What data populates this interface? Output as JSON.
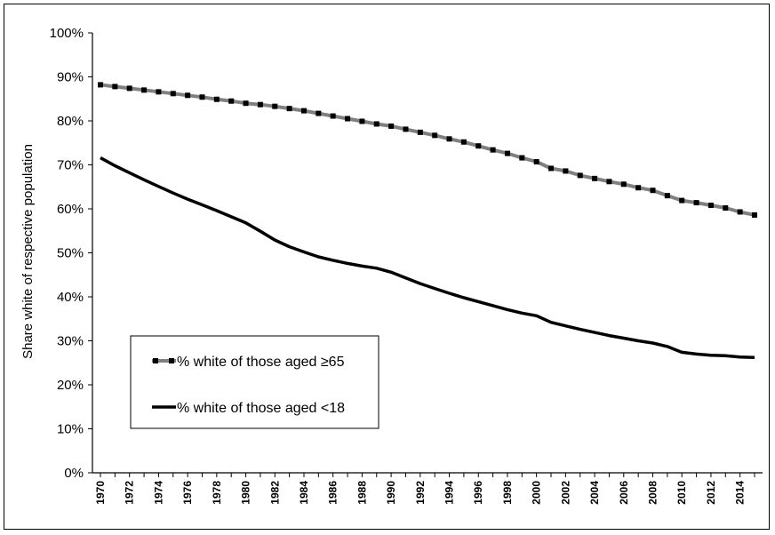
{
  "chart_data": {
    "type": "line",
    "title": "",
    "xlabel": "",
    "ylabel": "Share white of respective population",
    "ylim": [
      0,
      100
    ],
    "y_tick_values": [
      0,
      10,
      20,
      30,
      40,
      50,
      60,
      70,
      80,
      90,
      100
    ],
    "y_tick_labels": [
      "0%",
      "10%",
      "20%",
      "30%",
      "40%",
      "50%",
      "60%",
      "70%",
      "80%",
      "90%",
      "100%"
    ],
    "x_tick_labels": [
      "1970",
      "1972",
      "1974",
      "1976",
      "1978",
      "1980",
      "1982",
      "1984",
      "1986",
      "1988",
      "1990",
      "1992",
      "1994",
      "1996",
      "1998",
      "2000",
      "2002",
      "2004",
      "2006",
      "2008",
      "2010",
      "2012",
      "2014"
    ],
    "x": [
      1970,
      1971,
      1972,
      1973,
      1974,
      1975,
      1976,
      1977,
      1978,
      1979,
      1980,
      1981,
      1982,
      1983,
      1984,
      1985,
      1986,
      1987,
      1988,
      1989,
      1990,
      1991,
      1992,
      1993,
      1994,
      1995,
      1996,
      1997,
      1998,
      1999,
      2000,
      2001,
      2002,
      2003,
      2004,
      2005,
      2006,
      2007,
      2008,
      2009,
      2010,
      2011,
      2012,
      2013,
      2014,
      2015
    ],
    "series": [
      {
        "name": "% white of those aged ≥65",
        "color": "#808080",
        "marker": "square",
        "values": [
          88.2,
          87.8,
          87.4,
          87.0,
          86.6,
          86.2,
          85.8,
          85.4,
          84.9,
          84.5,
          84.0,
          83.7,
          83.3,
          82.8,
          82.3,
          81.7,
          81.1,
          80.5,
          79.9,
          79.3,
          78.8,
          78.1,
          77.4,
          76.7,
          75.9,
          75.2,
          74.3,
          73.4,
          72.6,
          71.6,
          70.7,
          69.2,
          68.6,
          67.6,
          66.9,
          66.2,
          65.6,
          64.8,
          64.2,
          63.0,
          61.9,
          61.4,
          60.8,
          60.2,
          59.3,
          58.6
        ]
      },
      {
        "name": "% white of those aged <18",
        "color": "#000000",
        "marker": "none",
        "values": [
          71.6,
          69.8,
          68.2,
          66.6,
          65.1,
          63.6,
          62.2,
          60.9,
          59.6,
          58.2,
          56.8,
          54.9,
          52.9,
          51.4,
          50.2,
          49.1,
          48.3,
          47.6,
          47.0,
          46.5,
          45.6,
          44.3,
          43.0,
          41.9,
          40.8,
          39.8,
          38.9,
          38.0,
          37.1,
          36.3,
          35.7,
          34.2,
          33.4,
          32.6,
          31.9,
          31.2,
          30.6,
          30.0,
          29.5,
          28.7,
          27.4,
          27.0,
          26.7,
          26.6,
          26.3,
          26.2
        ]
      }
    ],
    "legend_position": "lower-left",
    "grid": false
  }
}
